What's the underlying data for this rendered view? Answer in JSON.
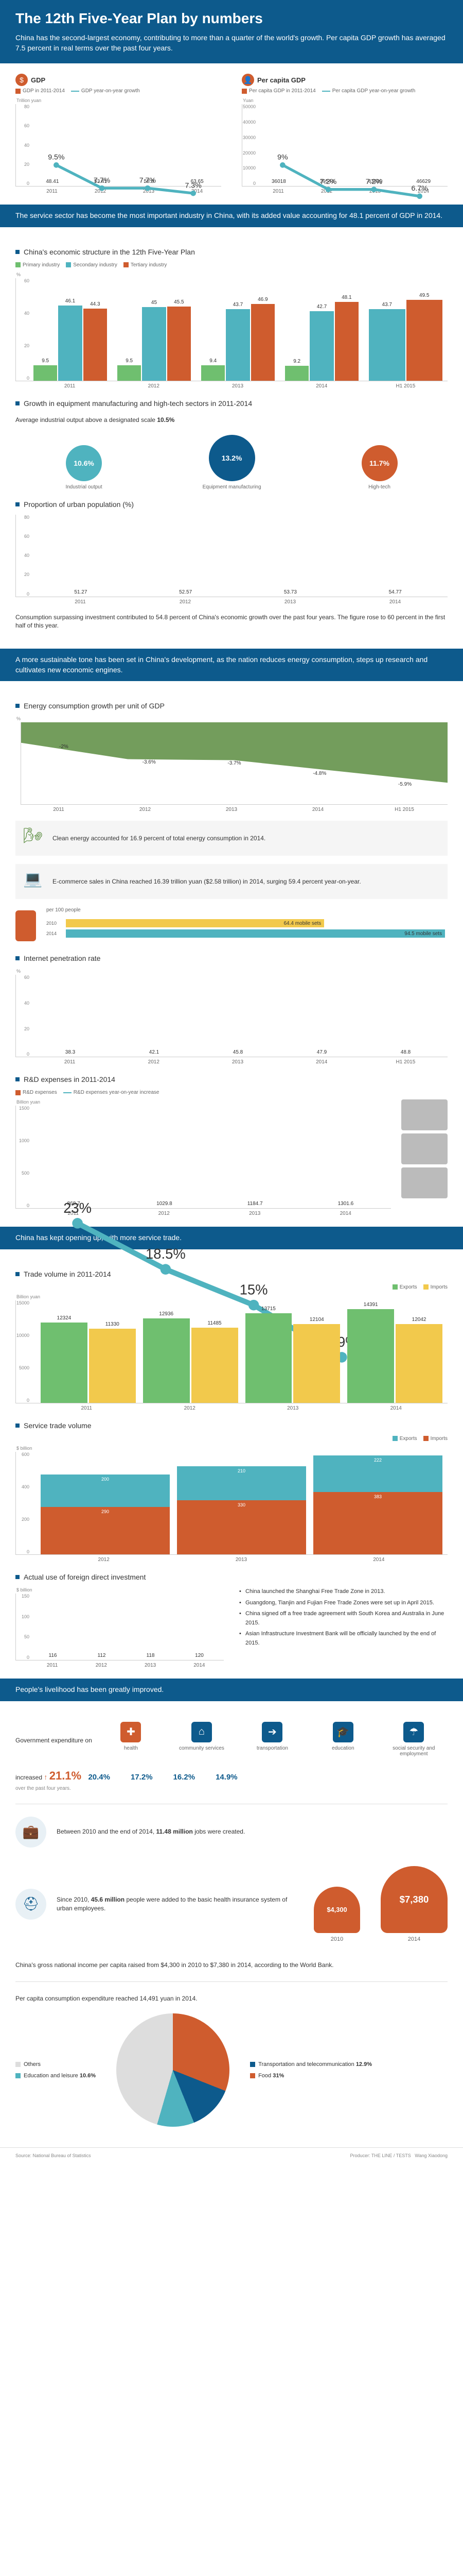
{
  "header": {
    "title": "The 12th Five-Year Plan by numbers",
    "subtitle": "China has the second-largest economy, contributing to more than a quarter of the world's growth. Per capita GDP growth has averaged 7.5 percent in real terms over the past four years."
  },
  "colors": {
    "primary": "#0d5a8c",
    "orange": "#cf5c2e",
    "teal": "#4fb3bf",
    "lightblue": "#6fa8c7",
    "green": "#6fbf6f",
    "yellow": "#f2c94c",
    "darkgreen": "#5a8c3f"
  },
  "gdp": {
    "label": "GDP",
    "legend_bar": "GDP in 2011-2014",
    "legend_line": "GDP year-on-year growth",
    "unit": "Trillion yuan",
    "years": [
      "2011",
      "2012",
      "2013",
      "2014"
    ],
    "values": [
      48.41,
      53.41,
      58.8,
      63.65
    ],
    "growth": [
      9.5,
      7.7,
      7.7,
      7.3
    ],
    "bar_color": "#cf5c2e",
    "line_color": "#4fb3bf",
    "ymax": 80
  },
  "per_capita": {
    "label": "Per capita GDP",
    "legend_bar": "Per capita GDP in 2011-2014",
    "legend_line": "Per capita GDP year-on-year growth",
    "unit": "Yuan",
    "years": [
      "2011",
      "2012",
      "2013",
      "2014"
    ],
    "values": [
      36018,
      39544,
      43320,
      46629
    ],
    "growth": [
      9.0,
      7.2,
      7.2,
      6.7
    ],
    "bar_color": "#cf5c2e",
    "line_color": "#4fb3bf",
    "ymax": 50000
  },
  "section2_banner": "The service sector has become the most important industry in China, with its added value accounting for 48.1 percent of GDP in 2014.",
  "econ_structure": {
    "title": "China's economic structure in the 12th Five-Year Plan",
    "legend": [
      "Primary industry",
      "Secondary industry",
      "Tertiary industry"
    ],
    "legend_colors": [
      "#6fbf6f",
      "#4fb3bf",
      "#cf5c2e"
    ],
    "years": [
      "2011",
      "2012",
      "2013",
      "2014",
      "H1 2015"
    ],
    "primary": [
      9.5,
      9.5,
      9.4,
      9.2,
      null
    ],
    "secondary": [
      46.1,
      45.0,
      43.7,
      42.7,
      43.7
    ],
    "tertiary": [
      44.3,
      45.5,
      46.9,
      48.1,
      49.5
    ],
    "ymax": 60,
    "unit": "%"
  },
  "hightech": {
    "title": "Growth in equipment manufacturing and high-tech sectors in 2011-2014",
    "note": "Average industrial output above a designated scale",
    "note_value": "10.5%",
    "items": [
      {
        "label": "Industrial output",
        "value": "10.6%",
        "color": "#4fb3bf"
      },
      {
        "label": "Equipment manufacturing",
        "value": "13.2%",
        "color": "#0d5a8c"
      },
      {
        "label": "High-tech",
        "value": "11.7%",
        "color": "#cf5c2e"
      }
    ]
  },
  "urban": {
    "title": "Proportion of urban population (%)",
    "years": [
      "2011",
      "2012",
      "2013",
      "2014"
    ],
    "values": [
      51.27,
      52.57,
      53.73,
      54.77
    ],
    "bar_color": "#4fb3bf",
    "ymax": 80,
    "caption": "Consumption surpassing investment contributed to 54.8 percent of China's economic growth over the past four years. The figure rose to 60 percent in the first half of this year."
  },
  "section3_banner": "A more sustainable tone has been set in China's development, as the nation reduces energy consumption, steps up research and cultivates new economic engines.",
  "energy_growth": {
    "title": "Energy consumption growth per unit of GDP",
    "years": [
      "2011",
      "2012",
      "2013",
      "2014",
      "H1 2015"
    ],
    "values": [
      -2.0,
      -3.6,
      -3.7,
      -4.8,
      -5.9
    ],
    "fill_color": "#5a8c3f",
    "unit": "%"
  },
  "clean_energy": {
    "text": "Clean energy accounted for 16.9 percent of total energy consumption in 2014."
  },
  "ecommerce": {
    "text": "E-commerce sales in China reached 16.39 trillion yuan ($2.58 trillion) in 2014, surging 59.4 percent year-on-year."
  },
  "mobile": {
    "label": "per 100 people",
    "years": [
      "2010",
      "2014"
    ],
    "values": [
      64.4,
      94.5
    ],
    "unit": "mobile sets",
    "bar_color_1": "#f2c94c",
    "bar_color_2": "#4fb3bf"
  },
  "internet": {
    "title": "Internet penetration rate",
    "years": [
      "2011",
      "2012",
      "2013",
      "2014",
      "H1 2015"
    ],
    "values": [
      38.3,
      42.1,
      45.8,
      47.9,
      48.8
    ],
    "bar_color": "#4fb3bf",
    "ymax": 60,
    "unit": "%"
  },
  "rd": {
    "title": "R&D expenses in 2011-2014",
    "legend_bar": "R&D expenses",
    "legend_line": "R&D expenses year-on-year increase",
    "unit": "Billion yuan",
    "years": [
      "2011",
      "2012",
      "2013",
      "2014"
    ],
    "values": [
      868.7,
      1029.8,
      1184.7,
      1301.6
    ],
    "growth": [
      23,
      18.5,
      15,
      9.9
    ],
    "bar_color": "#cf5c2e",
    "line_color": "#4fb3bf",
    "ymax": 1500
  },
  "section4_banner": "China has kept opening up, with more service trade.",
  "trade": {
    "title": "Trade volume in 2011-2014",
    "legend": [
      "Exports",
      "Imports"
    ],
    "legend_colors": [
      "#6fbf6f",
      "#f2c94c"
    ],
    "unit": "Billion yuan",
    "years": [
      "2011",
      "2012",
      "2013",
      "2014"
    ],
    "exports": [
      12324,
      12936,
      13715,
      14391
    ],
    "imports": [
      11330,
      11485,
      12104,
      12042
    ],
    "ymax": 15000
  },
  "service_trade": {
    "title": "Service trade volume",
    "legend": [
      "Exports",
      "Imports"
    ],
    "legend_colors": [
      "#4fb3bf",
      "#cf5c2e"
    ],
    "unit": "$ billion",
    "years": [
      "2012",
      "2013",
      "2014"
    ],
    "exports": [
      200,
      210,
      222
    ],
    "imports": [
      290,
      330,
      383
    ],
    "ymax": 600
  },
  "fdi": {
    "title": "Actual use of foreign direct investment",
    "unit": "$ billion",
    "years": [
      "2011",
      "2012",
      "2013",
      "2014"
    ],
    "values": [
      116,
      112,
      118,
      120
    ],
    "bar_color": "#4fb3bf",
    "bullets": [
      "China launched the Shanghai Free Trade Zone in 2013.",
      "Guangdong, Tianjin and Fujian Free Trade Zones were set up in April 2015.",
      "China signed off a free trade agreement with South Korea and Australia in June 2015.",
      "Asian Infrastructure Investment Bank will be officially launched by the end of 2015."
    ]
  },
  "section5_banner": "People's livelihood has been greatly improved.",
  "gov_expenditure": {
    "lead_label": "Government expenditure on",
    "increased_label": "increased",
    "increased_value": "21.1%",
    "items": [
      {
        "label": "health",
        "value": "21.1%",
        "icon": "✚",
        "color": "#cf5c2e"
      },
      {
        "label": "community services",
        "value": "20.4%",
        "icon": "⌂",
        "color": "#0d5a8c"
      },
      {
        "label": "transportation",
        "value": "17.2%",
        "icon": "➔",
        "color": "#0d5a8c"
      },
      {
        "label": "education",
        "value": "16.2%",
        "icon": "🎓",
        "color": "#0d5a8c"
      },
      {
        "label": "social security and employment",
        "value": "14.9%",
        "icon": "☂",
        "color": "#0d5a8c"
      }
    ],
    "note": "over the past four years."
  },
  "jobs": {
    "text_1": "Between 2010 and the end of 2014,",
    "text_2": "11.48 million",
    "text_3": "jobs were created."
  },
  "healthcare": {
    "text_1": "Since 2010,",
    "text_2": "45.6 million",
    "text_3": "people were added to the basic health insurance system of urban employees."
  },
  "income": {
    "caption": "China's gross national income per capita raised from $4,300 in 2010 to $7,380 in 2014, according to the World Bank.",
    "items": [
      {
        "year": "2010",
        "value": "$4,300",
        "size": 90
      },
      {
        "year": "2014",
        "value": "$7,380",
        "size": 130
      }
    ]
  },
  "consumption": {
    "title": "Per capita consumption expenditure reached 14,491 yuan in 2014.",
    "slices": [
      {
        "label": "Food",
        "value": "31%",
        "color": "#cf5c2e"
      },
      {
        "label": "Transportation and telecommunication",
        "value": "12.9%",
        "color": "#0d5a8c"
      },
      {
        "label": "Education and leisure",
        "value": "10.6%",
        "color": "#4fb3bf"
      },
      {
        "label": "Others",
        "value": "",
        "color": "#dddddd"
      }
    ]
  },
  "footer": {
    "source": "Source: National Bureau of Statistics",
    "producer": "Producer: THE LINE / TESTS",
    "credits": "Wang Xiaodong"
  }
}
